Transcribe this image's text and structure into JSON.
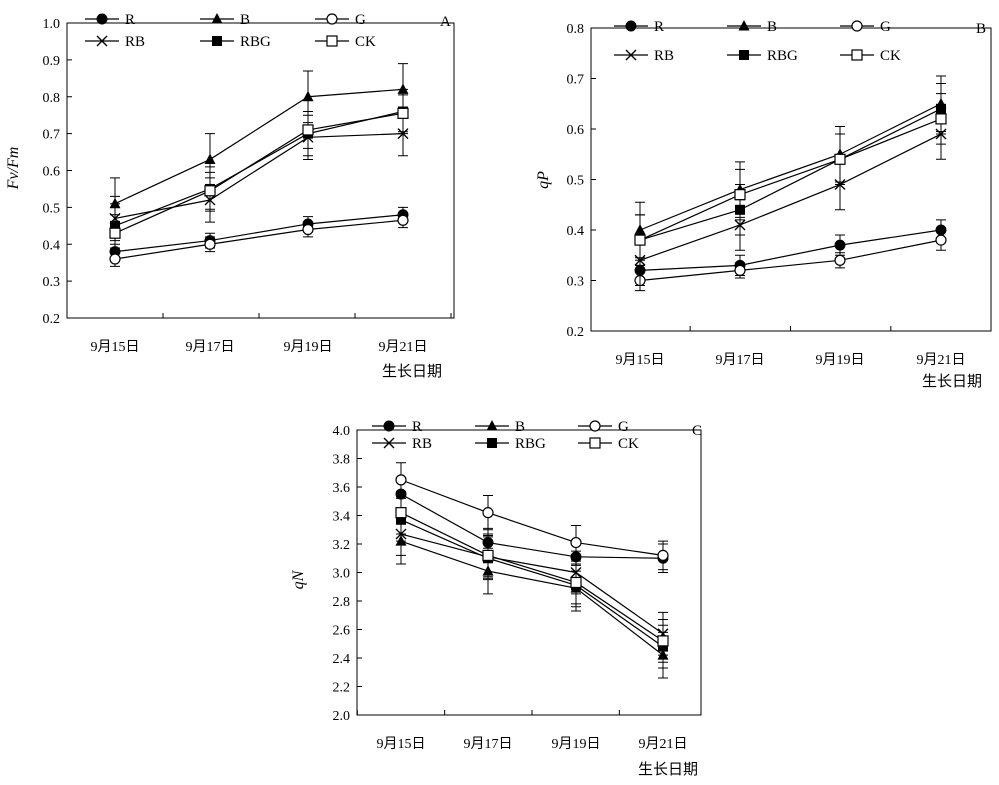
{
  "x_axis_title": "生长日期",
  "dates": [
    "9月15日",
    "9月17日",
    "9月19日",
    "9月21日"
  ],
  "legend": [
    {
      "key": "R",
      "label": "R",
      "marker": "filled-circle"
    },
    {
      "key": "B",
      "label": "B",
      "marker": "filled-triangle"
    },
    {
      "key": "G",
      "label": "G",
      "marker": "open-circle"
    },
    {
      "key": "RB",
      "label": "RB",
      "marker": "cross"
    },
    {
      "key": "RBG",
      "label": "RBG",
      "marker": "filled-square"
    },
    {
      "key": "CK",
      "label": "CK",
      "marker": "open-square"
    }
  ],
  "chart_data": [
    {
      "type": "line",
      "panel": "A",
      "ylabel": "Fv/Fm",
      "ylim": [
        0.2,
        1.0
      ],
      "yticks": [
        "0.2",
        "0.3",
        "0.4",
        "0.5",
        "0.6",
        "0.7",
        "0.8",
        "0.9",
        "1.0"
      ],
      "series": [
        {
          "name": "R",
          "values": [
            0.38,
            0.41,
            0.455,
            0.48
          ],
          "errors": [
            0.02,
            0.02,
            0.02,
            0.02
          ]
        },
        {
          "name": "B",
          "values": [
            0.51,
            0.63,
            0.8,
            0.82
          ],
          "errors": [
            0.07,
            0.07,
            0.07,
            0.07
          ]
        },
        {
          "name": "G",
          "values": [
            0.36,
            0.4,
            0.44,
            0.465
          ],
          "errors": [
            0.02,
            0.02,
            0.02,
            0.02
          ]
        },
        {
          "name": "RB",
          "values": [
            0.47,
            0.52,
            0.69,
            0.7
          ],
          "errors": [
            0.06,
            0.06,
            0.06,
            0.06
          ]
        },
        {
          "name": "RBG",
          "values": [
            0.45,
            0.55,
            0.7,
            0.76
          ],
          "errors": [
            0.06,
            0.06,
            0.06,
            0.06
          ]
        },
        {
          "name": "CK",
          "values": [
            0.43,
            0.545,
            0.71,
            0.755
          ],
          "errors": [
            0.05,
            0.05,
            0.05,
            0.05
          ]
        }
      ]
    },
    {
      "type": "line",
      "panel": "B",
      "ylabel": "qP",
      "ylim": [
        0.2,
        0.8
      ],
      "yticks": [
        "0.2",
        "0.3",
        "0.4",
        "0.5",
        "0.6",
        "0.7",
        "0.8"
      ],
      "series": [
        {
          "name": "R",
          "values": [
            0.32,
            0.33,
            0.37,
            0.4
          ],
          "errors": [
            0.02,
            0.02,
            0.02,
            0.02
          ]
        },
        {
          "name": "B",
          "values": [
            0.4,
            0.48,
            0.55,
            0.65
          ],
          "errors": [
            0.055,
            0.055,
            0.055,
            0.055
          ]
        },
        {
          "name": "G",
          "values": [
            0.3,
            0.32,
            0.34,
            0.38
          ],
          "errors": [
            0.02,
            0.015,
            0.015,
            0.02
          ]
        },
        {
          "name": "RB",
          "values": [
            0.34,
            0.41,
            0.49,
            0.59
          ],
          "errors": [
            0.05,
            0.05,
            0.05,
            0.05
          ]
        },
        {
          "name": "RBG",
          "values": [
            0.38,
            0.44,
            0.54,
            0.64
          ],
          "errors": [
            0.05,
            0.05,
            0.05,
            0.05
          ]
        },
        {
          "name": "CK",
          "values": [
            0.38,
            0.47,
            0.54,
            0.62
          ],
          "errors": [
            0.05,
            0.05,
            0.05,
            0.05
          ]
        }
      ]
    },
    {
      "type": "line",
      "panel": "C",
      "ylabel": "qN",
      "ylim": [
        2.0,
        4.0
      ],
      "yticks": [
        "2.0",
        "2.2",
        "2.4",
        "2.6",
        "2.8",
        "3.0",
        "3.2",
        "3.4",
        "3.6",
        "3.8",
        "4.0"
      ],
      "series": [
        {
          "name": "R",
          "values": [
            3.55,
            3.21,
            3.11,
            3.1
          ],
          "errors": [
            0.1,
            0.1,
            0.1,
            0.1
          ]
        },
        {
          "name": "B",
          "values": [
            3.22,
            3.01,
            2.89,
            2.42
          ],
          "errors": [
            0.16,
            0.16,
            0.16,
            0.16
          ]
        },
        {
          "name": "G",
          "values": [
            3.65,
            3.42,
            3.21,
            3.12
          ],
          "errors": [
            0.12,
            0.12,
            0.12,
            0.1
          ]
        },
        {
          "name": "RB",
          "values": [
            3.27,
            3.11,
            3.0,
            2.57
          ],
          "errors": [
            0.15,
            0.15,
            0.15,
            0.15
          ]
        },
        {
          "name": "RBG",
          "values": [
            3.37,
            3.1,
            2.91,
            2.48
          ],
          "errors": [
            0.15,
            0.15,
            0.15,
            0.15
          ]
        },
        {
          "name": "CK",
          "values": [
            3.42,
            3.12,
            2.93,
            2.52
          ],
          "errors": [
            0.15,
            0.15,
            0.15,
            0.15
          ]
        }
      ]
    }
  ]
}
